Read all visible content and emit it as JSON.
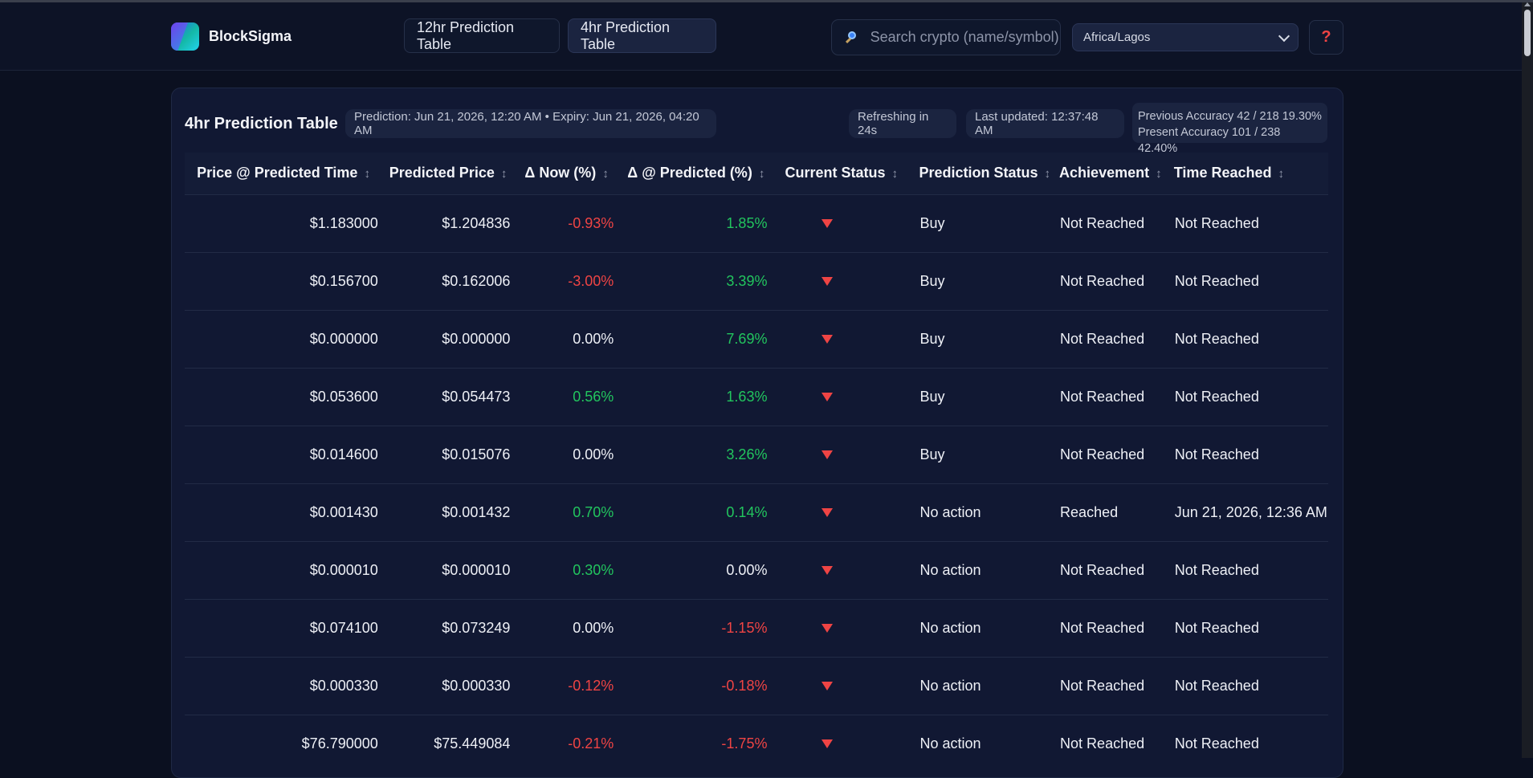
{
  "brand": {
    "name": "BlockSigma"
  },
  "nav": {
    "tabs": [
      {
        "label": "12hr Prediction Table",
        "active": false
      },
      {
        "label": "4hr Prediction Table",
        "active": true
      }
    ],
    "search_placeholder": "Search crypto (name/symbol)",
    "timezone": "Africa/Lagos",
    "help_label": "?"
  },
  "panel": {
    "title": "4hr Prediction Table",
    "prediction_info": "Prediction: Jun 21, 2026, 12:20 AM • Expiry: Jun 21, 2026, 04:20 AM",
    "refreshing": "Refreshing in 24s",
    "last_updated": "Last updated: 12:37:48 AM",
    "previous_accuracy": "Previous Accuracy 42 / 218 19.30%",
    "present_accuracy": "Present Accuracy 101 / 238 42.40%"
  },
  "table": {
    "sort_glyph": "↕",
    "columns": [
      "Price @ Predicted Time",
      "Predicted Price",
      "Δ Now (%)",
      "Δ @ Predicted (%)",
      "Current Status",
      "Prediction Status",
      "Achievement",
      "Time Reached"
    ],
    "rows": [
      {
        "price": "$1.183000",
        "predicted": "$1.204836",
        "now": "-0.93%",
        "now_color": "#ef4444",
        "pred": "1.85%",
        "pred_color": "#22c55e",
        "status": "Buy",
        "achievement": "Not Reached",
        "time": "Not Reached"
      },
      {
        "price": "$0.156700",
        "predicted": "$0.162006",
        "now": "-3.00%",
        "now_color": "#ef4444",
        "pred": "3.39%",
        "pred_color": "#22c55e",
        "status": "Buy",
        "achievement": "Not Reached",
        "time": "Not Reached"
      },
      {
        "price": "$0.000000",
        "predicted": "$0.000000",
        "now": "0.00%",
        "now_color": "#eef0f6",
        "pred": "7.69%",
        "pred_color": "#22c55e",
        "status": "Buy",
        "achievement": "Not Reached",
        "time": "Not Reached"
      },
      {
        "price": "$0.053600",
        "predicted": "$0.054473",
        "now": "0.56%",
        "now_color": "#22c55e",
        "pred": "1.63%",
        "pred_color": "#22c55e",
        "status": "Buy",
        "achievement": "Not Reached",
        "time": "Not Reached"
      },
      {
        "price": "$0.014600",
        "predicted": "$0.015076",
        "now": "0.00%",
        "now_color": "#eef0f6",
        "pred": "3.26%",
        "pred_color": "#22c55e",
        "status": "Buy",
        "achievement": "Not Reached",
        "time": "Not Reached"
      },
      {
        "price": "$0.001430",
        "predicted": "$0.001432",
        "now": "0.70%",
        "now_color": "#22c55e",
        "pred": "0.14%",
        "pred_color": "#22c55e",
        "status": "No action",
        "achievement": "Reached",
        "time": "Jun 21, 2026, 12:36 AM"
      },
      {
        "price": "$0.000010",
        "predicted": "$0.000010",
        "now": "0.30%",
        "now_color": "#22c55e",
        "pred": "0.00%",
        "pred_color": "#eef0f6",
        "status": "No action",
        "achievement": "Not Reached",
        "time": "Not Reached"
      },
      {
        "price": "$0.074100",
        "predicted": "$0.073249",
        "now": "0.00%",
        "now_color": "#eef0f6",
        "pred": "-1.15%",
        "pred_color": "#ef4444",
        "status": "No action",
        "achievement": "Not Reached",
        "time": "Not Reached"
      },
      {
        "price": "$0.000330",
        "predicted": "$0.000330",
        "now": "-0.12%",
        "now_color": "#ef4444",
        "pred": "-0.18%",
        "pred_color": "#ef4444",
        "status": "No action",
        "achievement": "Not Reached",
        "time": "Not Reached"
      },
      {
        "price": "$76.790000",
        "predicted": "$75.449084",
        "now": "-0.21%",
        "now_color": "#ef4444",
        "pred": "-1.75%",
        "pred_color": "#ef4444",
        "status": "No action",
        "achievement": "Not Reached",
        "time": "Not Reached"
      }
    ]
  }
}
